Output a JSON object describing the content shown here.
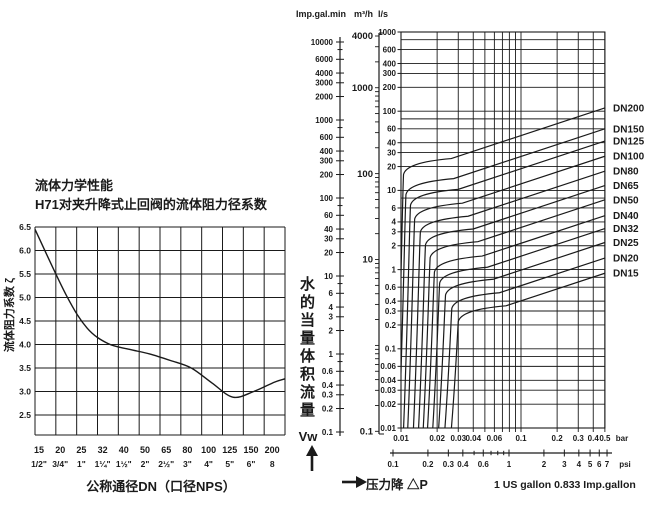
{
  "page": {
    "background": "#ffffff",
    "ink": "#1a1a1a"
  },
  "left_chart": {
    "title_line1": "流体力学性能",
    "title_line2": "H71对夹升降式止回阀的流体阻力径系数",
    "y_axis_label": "流体阻力系数 ζ",
    "x_axis_title": "公称通径DN（口径NPS）"
  },
  "middle": {
    "flow_axis_label": "水的当量体积流量",
    "flow_axis_symbol": "Vw",
    "pressure_axis_label": "压力降 △P"
  },
  "right_chart": {
    "unit_headers": [
      "Imp.gal.min",
      "m³/h",
      "l/s"
    ],
    "conversion_note": "1 US gallon 0.833 Imp.gallon"
  },
  "chart_data": [
    {
      "type": "line",
      "title": "H71对夹升降式止回阀的流体阻力径系数",
      "xlabel": "公称通径DN（口径NPS）",
      "ylabel": "流体阻力系数 ζ",
      "categories_dn": [
        "15",
        "20",
        "25",
        "32",
        "40",
        "50",
        "65",
        "80",
        "100",
        "125",
        "150",
        "200"
      ],
      "categories_nps": [
        "1/2\"",
        "3/4\"",
        "1\"",
        "1¼\"",
        "1½\"",
        "2\"",
        "2½\"",
        "3\"",
        "4\"",
        "5\"",
        "6\"",
        "8"
      ],
      "zeta": [
        6.45,
        5.05,
        4.35,
        4.02,
        3.9,
        3.8,
        3.66,
        3.5,
        3.18,
        2.88,
        3.0,
        3.2
      ],
      "y_ticks": [
        "6.5",
        "6.0",
        "5.5",
        "5.0",
        "4.5",
        "4.0",
        "3.5",
        "3.0",
        "2.5"
      ],
      "ylim": [
        2.5,
        6.5
      ],
      "grid": true,
      "legend": "none"
    },
    {
      "type": "line",
      "scale": "log-log",
      "title": "水的当量体积流量 Vw 对 压力降 △P",
      "xlabel": "压力降 △P",
      "ylabel": "水的当量体积流量 Vw",
      "x_range_bar": [
        0.01,
        0.5
      ],
      "y_range_ls": [
        0.01,
        1000
      ],
      "x_gridlines_bar": [
        0.01,
        0.02,
        0.03,
        0.04,
        0.05,
        0.06,
        0.07,
        0.08,
        0.09,
        0.1,
        0.2,
        0.3,
        0.4,
        0.5
      ],
      "y_gridline_pattern": [
        1,
        2,
        3,
        4,
        6,
        8
      ],
      "y_gridline_decades": [
        -2,
        -1,
        0,
        1,
        2
      ],
      "x_ticks_bar": [
        "0.01",
        "0.02",
        "0.03",
        "0.04",
        "0.06",
        "0.1",
        "0.2",
        "0.3",
        "0.4",
        "0.5"
      ],
      "x_unit_bar": "bar",
      "x_ticks_psi": [
        "0.1",
        "0.2",
        "0.3",
        "0.4",
        "0.6",
        "1",
        "2",
        "3",
        "4",
        "5",
        "6",
        "7"
      ],
      "x_unit_psi": "psi",
      "y_ticks_ls": [
        "1000",
        "600",
        "400",
        "300",
        "200",
        "100",
        "60",
        "40",
        "30",
        "20",
        "10",
        "6",
        "4",
        "3",
        "2",
        "1",
        "0.6",
        "0.4",
        "0.3",
        "0.2",
        "0.1",
        "0.06",
        "0.04",
        "0.03",
        "0.02",
        "0.01"
      ],
      "imp_gal_min_scale_labels": [
        "10000",
        "6000",
        "4000",
        "3000",
        "2000",
        "1000",
        "600",
        "400",
        "300",
        "200",
        "100",
        "60",
        "40",
        "30",
        "20",
        "10",
        "6",
        "4",
        "3",
        "2",
        "1",
        "0.6",
        "0.4",
        "0.3",
        "0.2",
        "0.1"
      ],
      "m3h_scale_labels": [
        "4000",
        "1000",
        "100",
        "10",
        "0.1"
      ],
      "series": [
        {
          "name": "DN200",
          "flow_ls_at_0_5bar": 110,
          "opening_knee_bar": 0.0105
        },
        {
          "name": "DN150",
          "flow_ls_at_0_5bar": 60,
          "opening_knee_bar": 0.011
        },
        {
          "name": "DN125",
          "flow_ls_at_0_5bar": 42,
          "opening_knee_bar": 0.012
        },
        {
          "name": "DN100",
          "flow_ls_at_0_5bar": 27,
          "opening_knee_bar": 0.013
        },
        {
          "name": "DN80",
          "flow_ls_at_0_5bar": 17.5,
          "opening_knee_bar": 0.0145
        },
        {
          "name": "DN65",
          "flow_ls_at_0_5bar": 11.5,
          "opening_knee_bar": 0.016
        },
        {
          "name": "DN50",
          "flow_ls_at_0_5bar": 7.6,
          "opening_knee_bar": 0.0175
        },
        {
          "name": "DN40",
          "flow_ls_at_0_5bar": 4.8,
          "opening_knee_bar": 0.019
        },
        {
          "name": "DN32",
          "flow_ls_at_0_5bar": 3.3,
          "opening_knee_bar": 0.021
        },
        {
          "name": "DN25",
          "flow_ls_at_0_5bar": 2.2,
          "opening_knee_bar": 0.0235
        },
        {
          "name": "DN20",
          "flow_ls_at_0_5bar": 1.4,
          "opening_knee_bar": 0.0265
        },
        {
          "name": "DN15",
          "flow_ls_at_0_5bar": 0.9,
          "opening_knee_bar": 0.03
        }
      ],
      "legend": "right-edge-labels"
    }
  ]
}
